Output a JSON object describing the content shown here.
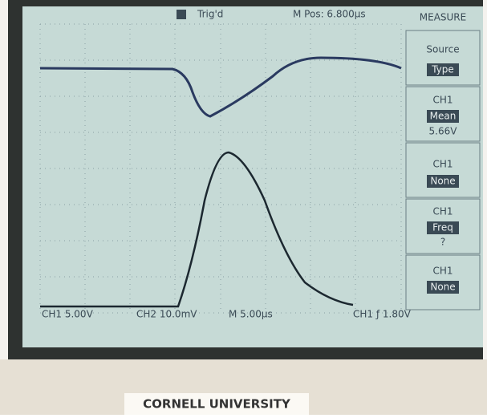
{
  "top_bar": {
    "trigger": "Trig'd",
    "position": "M Pos: 6.800µs",
    "menu_title": "MEASURE"
  },
  "menu": [
    {
      "line1": "Source",
      "line2": "Type"
    },
    {
      "line1": "CH1",
      "line2": "Mean",
      "line3": "5.66V"
    },
    {
      "line1": "CH1",
      "line2": "None"
    },
    {
      "line1": "CH1",
      "line2": "Freq",
      "line3": "?"
    },
    {
      "line1": "CH1",
      "line2": "None"
    }
  ],
  "status_bar": {
    "ch1": "CH1 5.00V",
    "ch2": "CH2 10.0mV",
    "timebase": "M 5.00µs",
    "trigger": "CH1 ƒ 1.80V"
  },
  "label": "CORNELL UNIVERSITY"
}
